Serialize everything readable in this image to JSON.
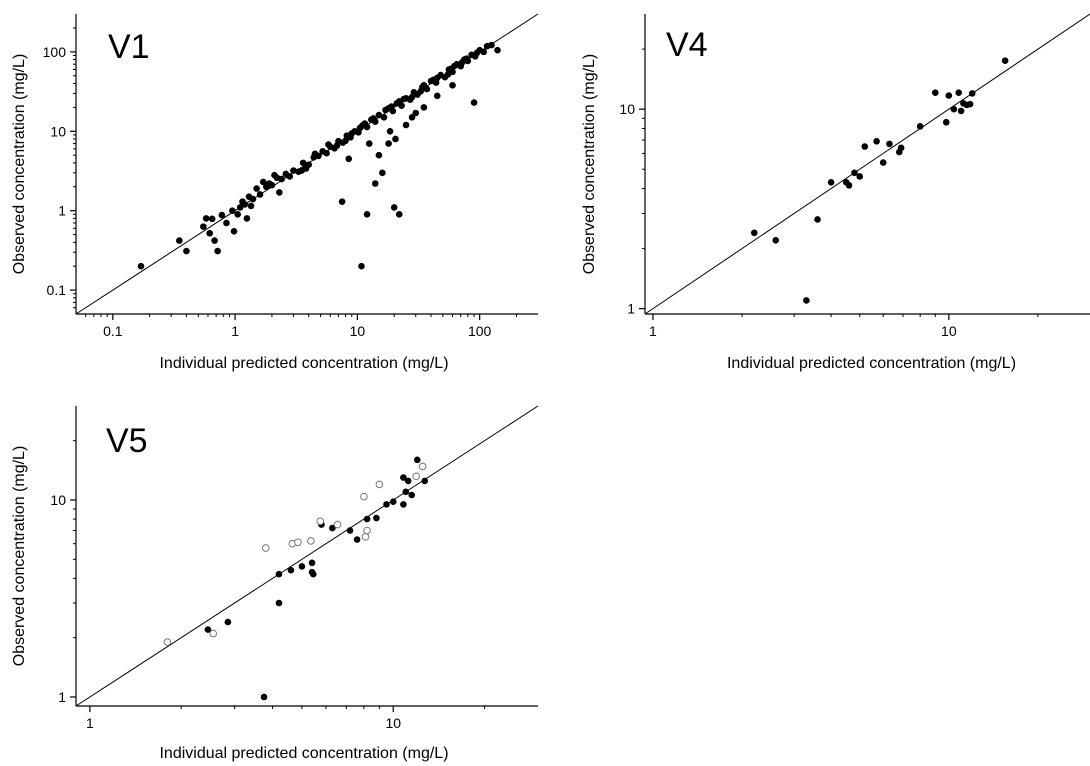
{
  "figure": {
    "panels": [
      "V1",
      "V4",
      "V5"
    ]
  },
  "chart_data": [
    {
      "type": "scatter",
      "panel_label": "V1",
      "xlabel": "Individual predicted concentration (mg/L)",
      "ylabel": "Observed concentration (mg/L)",
      "xscale": "log",
      "yscale": "log",
      "xlim": [
        0.05,
        300
      ],
      "ylim": [
        0.05,
        300
      ],
      "xticks": [
        0.1,
        1,
        10,
        100
      ],
      "xtick_labels": [
        "0.1",
        "1",
        "10",
        "100"
      ],
      "yticks": [
        0.1,
        1,
        10,
        100
      ],
      "ytick_labels": [
        "0.1",
        "1",
        "10",
        "100"
      ],
      "identity_line": true,
      "grid": false,
      "series": [
        {
          "marker": "filled",
          "points": [
            [
              0.17,
              0.2
            ],
            [
              0.35,
              0.42
            ],
            [
              0.4,
              0.31
            ],
            [
              0.55,
              0.63
            ],
            [
              0.58,
              0.8
            ],
            [
              0.62,
              0.52
            ],
            [
              0.65,
              0.79
            ],
            [
              0.68,
              0.42
            ],
            [
              0.72,
              0.31
            ],
            [
              0.78,
              0.88
            ],
            [
              0.85,
              0.7
            ],
            [
              0.95,
              1.0
            ],
            [
              0.98,
              0.55
            ],
            [
              1.05,
              0.9
            ],
            [
              1.1,
              1.1
            ],
            [
              1.2,
              1.2
            ],
            [
              1.25,
              0.8
            ],
            [
              1.3,
              1.5
            ],
            [
              1.4,
              1.4
            ],
            [
              1.5,
              1.9
            ],
            [
              1.6,
              1.6
            ],
            [
              1.7,
              2.3
            ],
            [
              1.8,
              2.0
            ],
            [
              2.0,
              2.1
            ],
            [
              2.2,
              2.6
            ],
            [
              2.4,
              2.5
            ],
            [
              2.6,
              2.9
            ],
            [
              2.8,
              2.7
            ],
            [
              3.0,
              3.2
            ],
            [
              3.3,
              3.1
            ],
            [
              3.6,
              4.0
            ],
            [
              4.0,
              3.8
            ],
            [
              4.4,
              4.7
            ],
            [
              4.8,
              4.9
            ],
            [
              5.2,
              5.6
            ],
            [
              5.6,
              5.3
            ],
            [
              6.0,
              6.4
            ],
            [
              6.5,
              6.1
            ],
            [
              7.0,
              7.5
            ],
            [
              7.6,
              7.2
            ],
            [
              8.2,
              8.8
            ],
            [
              8.8,
              8.4
            ],
            [
              9.5,
              10.0
            ],
            [
              10.2,
              9.7
            ],
            [
              11.0,
              11.8
            ],
            [
              12.0,
              11.3
            ],
            [
              13.0,
              14.0
            ],
            [
              14.0,
              13.2
            ],
            [
              15.0,
              16.0
            ],
            [
              16.5,
              15.0
            ],
            [
              18.0,
              19.5
            ],
            [
              19.5,
              18.0
            ],
            [
              21.0,
              22.5
            ],
            [
              23.0,
              21.0
            ],
            [
              25.0,
              26.0
            ],
            [
              27.0,
              25.0
            ],
            [
              29.0,
              31.0
            ],
            [
              31.0,
              29.0
            ],
            [
              34.0,
              36.0
            ],
            [
              37.0,
              34.0
            ],
            [
              40.0,
              43.0
            ],
            [
              44.0,
              41.0
            ],
            [
              48.0,
              51.0
            ],
            [
              52.0,
              48.0
            ],
            [
              56.0,
              60.0
            ],
            [
              60.0,
              56.0
            ],
            [
              65.0,
              70.0
            ],
            [
              70.0,
              66.0
            ],
            [
              75.0,
              80.0
            ],
            [
              80.0,
              77.0
            ],
            [
              86.0,
              92.0
            ],
            [
              92.0,
              88.0
            ],
            [
              100.0,
              105.0
            ],
            [
              108.0,
              100.0
            ],
            [
              115.0,
              118.0
            ],
            [
              125.0,
              122.0
            ],
            [
              140.0,
              105.0
            ],
            [
              2.1,
              2.8
            ],
            [
              3.5,
              3.2
            ],
            [
              4.5,
              5.2
            ],
            [
              6.8,
              6.6
            ],
            [
              9.0,
              9.4
            ],
            [
              11.5,
              12.5
            ],
            [
              17.0,
              18.5
            ],
            [
              22.0,
              23.8
            ],
            [
              28.0,
              27.0
            ],
            [
              35.0,
              38.0
            ],
            [
              45.0,
              47.0
            ],
            [
              55.0,
              52.0
            ],
            [
              62.0,
              66.0
            ],
            [
              72.0,
              74.0
            ],
            [
              95.0,
              97.0
            ],
            [
              2.3,
              1.7
            ],
            [
              3.8,
              3.4
            ],
            [
              5.8,
              6.8
            ],
            [
              8.0,
              7.6
            ],
            [
              10.5,
              11.0
            ],
            [
              13.5,
              14.5
            ],
            [
              19.0,
              20.5
            ],
            [
              24.0,
              25.5
            ],
            [
              33.0,
              32.0
            ],
            [
              42.0,
              44.5
            ],
            [
              58.0,
              61.0
            ],
            [
              78.0,
              82.0
            ],
            [
              1.15,
              1.3
            ],
            [
              1.35,
              1.15
            ],
            [
              1.9,
              2.2
            ],
            [
              7.5,
              1.3
            ],
            [
              12.0,
              0.9
            ],
            [
              10.8,
              0.2
            ],
            [
              14.0,
              2.2
            ],
            [
              16.0,
              3.0
            ],
            [
              15.0,
              5.0
            ],
            [
              18.0,
              7.0
            ],
            [
              20.0,
              1.1
            ],
            [
              22.0,
              0.9
            ],
            [
              18.5,
              10.0
            ],
            [
              20.5,
              8.0
            ],
            [
              25.0,
              12.0
            ],
            [
              28.0,
              15.0
            ],
            [
              30.0,
              17.0
            ],
            [
              35.0,
              20.0
            ],
            [
              45.0,
              28.0
            ],
            [
              60.0,
              38.0
            ],
            [
              90.0,
              23.0
            ],
            [
              8.5,
              4.5
            ],
            [
              12.5,
              7.0
            ]
          ]
        }
      ]
    },
    {
      "type": "scatter",
      "panel_label": "V4",
      "xlabel": "Individual predicted concentration (mg/L)",
      "ylabel": "Observed concentration (mg/L)",
      "xscale": "log",
      "yscale": "log",
      "xlim": [
        0.94,
        30
      ],
      "ylim": [
        0.94,
        30
      ],
      "xticks": [
        1,
        10
      ],
      "xtick_labels": [
        "1",
        "10"
      ],
      "yticks": [
        1,
        10
      ],
      "ytick_labels": [
        "1",
        "10"
      ],
      "identity_line": true,
      "grid": false,
      "series": [
        {
          "marker": "filled",
          "points": [
            [
              2.2,
              2.4
            ],
            [
              2.6,
              2.2
            ],
            [
              3.3,
              1.1
            ],
            [
              3.6,
              2.8
            ],
            [
              4.0,
              4.3
            ],
            [
              4.5,
              4.3
            ],
            [
              4.6,
              4.15
            ],
            [
              4.8,
              4.8
            ],
            [
              5.0,
              4.6
            ],
            [
              5.2,
              6.5
            ],
            [
              5.7,
              6.9
            ],
            [
              6.0,
              5.4
            ],
            [
              6.3,
              6.7
            ],
            [
              6.8,
              6.1
            ],
            [
              6.9,
              6.4
            ],
            [
              8.0,
              8.2
            ],
            [
              9.0,
              12.1
            ],
            [
              9.8,
              8.6
            ],
            [
              10.0,
              11.7
            ],
            [
              10.4,
              10.0
            ],
            [
              10.8,
              12.1
            ],
            [
              11.0,
              9.8
            ],
            [
              11.2,
              10.7
            ],
            [
              11.5,
              10.5
            ],
            [
              11.8,
              10.6
            ],
            [
              12.0,
              12.0
            ],
            [
              15.5,
              17.5
            ]
          ]
        }
      ]
    },
    {
      "type": "scatter",
      "panel_label": "V5",
      "xlabel": "Individual predicted concentration (mg/L)",
      "ylabel": "Observed concentration (mg/L)",
      "xscale": "log",
      "yscale": "log",
      "xlim": [
        0.9,
        30
      ],
      "ylim": [
        0.9,
        30
      ],
      "xticks": [
        1,
        10
      ],
      "xtick_labels": [
        "1",
        "10"
      ],
      "yticks": [
        1,
        10
      ],
      "ytick_labels": [
        "1",
        "10"
      ],
      "identity_line": true,
      "grid": false,
      "series": [
        {
          "marker": "filled",
          "points": [
            [
              2.45,
              2.2
            ],
            [
              2.85,
              2.4
            ],
            [
              3.75,
              1.0
            ],
            [
              4.2,
              3.0
            ],
            [
              4.2,
              4.2
            ],
            [
              4.6,
              4.4
            ],
            [
              5.0,
              4.6
            ],
            [
              5.4,
              4.8
            ],
            [
              5.4,
              4.3
            ],
            [
              5.45,
              4.2
            ],
            [
              5.8,
              7.5
            ],
            [
              6.3,
              7.2
            ],
            [
              7.2,
              7.0
            ],
            [
              7.6,
              6.3
            ],
            [
              8.2,
              8.0
            ],
            [
              8.8,
              8.1
            ],
            [
              9.5,
              9.5
            ],
            [
              10.0,
              9.8
            ],
            [
              10.8,
              9.5
            ],
            [
              10.8,
              13.0
            ],
            [
              11.0,
              11.0
            ],
            [
              11.2,
              12.5
            ],
            [
              11.5,
              10.6
            ],
            [
              12.0,
              16.0
            ],
            [
              12.7,
              12.5
            ]
          ]
        },
        {
          "marker": "open",
          "points": [
            [
              1.8,
              1.9
            ],
            [
              2.55,
              2.1
            ],
            [
              3.8,
              5.7
            ],
            [
              4.65,
              6.0
            ],
            [
              4.85,
              6.1
            ],
            [
              5.35,
              6.2
            ],
            [
              5.75,
              7.8
            ],
            [
              6.55,
              7.5
            ],
            [
              8.0,
              10.4
            ],
            [
              8.1,
              6.5
            ],
            [
              8.2,
              7.0
            ],
            [
              9.0,
              12.0
            ],
            [
              11.9,
              13.2
            ],
            [
              12.5,
              14.8
            ]
          ]
        }
      ]
    }
  ]
}
